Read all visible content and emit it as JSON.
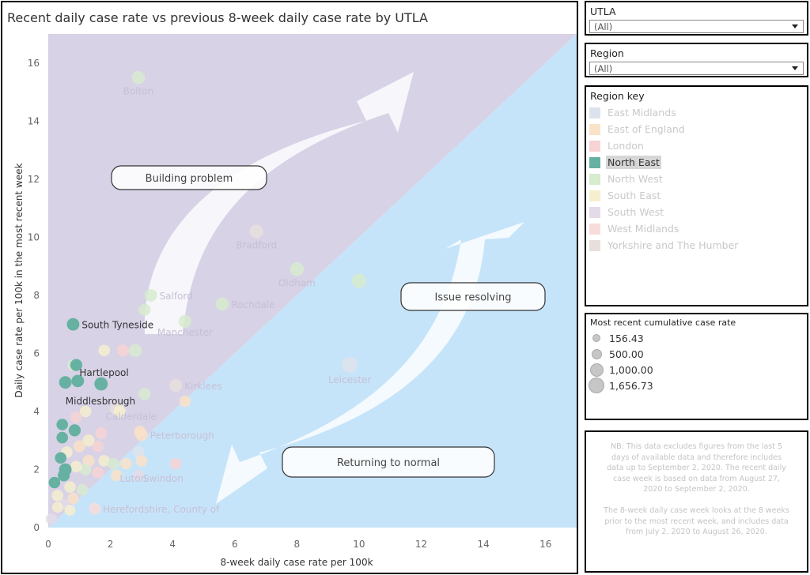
{
  "chart_title": "Recent daily case rate vs previous 8-week daily case rate by UTLA",
  "filters": [
    {
      "title": "UTLA",
      "value": "(All)"
    },
    {
      "title": "Region",
      "value": "(All)"
    }
  ],
  "region_key": {
    "title": "Region key",
    "items": [
      {
        "label": "East Midlands",
        "color": "#dde3ec",
        "active": false
      },
      {
        "label": "East of England",
        "color": "#f9e2c8",
        "active": false
      },
      {
        "label": "London",
        "color": "#f7d3d5",
        "active": false
      },
      {
        "label": "North East",
        "color": "#66b1a1",
        "active": true
      },
      {
        "label": "North West",
        "color": "#d7ebcf",
        "active": false
      },
      {
        "label": "South East",
        "color": "#f6efcf",
        "active": false
      },
      {
        "label": "South West",
        "color": "#e3dce8",
        "active": false
      },
      {
        "label": "West Midlands",
        "color": "#f8dcdb",
        "active": false
      },
      {
        "label": "Yorkshire and The Humber",
        "color": "#e7dfdc",
        "active": false
      }
    ]
  },
  "size_legend": {
    "title": "Most recent cumulative case rate",
    "items": [
      "156.43",
      "500.00",
      "1,000.00",
      "1,656.73"
    ]
  },
  "note": {
    "p1": "NB: This data excludes figures from the last 5 days of available data and therefore includes data up to September 2, 2020. The recent daily case week is based on data from August 27, 2020 to September 2, 2020.",
    "p2": "The 8-week daily case week looks at the 8 weeks prior to the most recent week, and includes data from July 2, 2020 to August 26, 2020."
  },
  "zone_labels": {
    "building": "Building problem",
    "resolving": "Issue resolving",
    "returning": "Returning to normal"
  },
  "colors": {
    "upper_zone": "#d7d2e6",
    "lower_zone": "#c6e4f9",
    "north_east": "#66b1a1"
  },
  "chart_data": {
    "type": "scatter",
    "title": "Recent daily case rate vs previous 8-week daily case rate by UTLA",
    "xlabel": "8-week daily case rate per 100k",
    "ylabel": "Daily case rate per 100k in the most recent week",
    "xlim": [
      0,
      17
    ],
    "ylim": [
      0,
      17
    ],
    "xticks": [
      0,
      2,
      4,
      6,
      8,
      10,
      12,
      14,
      16
    ],
    "yticks": [
      0,
      2,
      4,
      6,
      8,
      10,
      12,
      14,
      16
    ],
    "highlighted_region": "North East",
    "points": [
      {
        "label": "Bolton",
        "region": "North West",
        "x": 2.9,
        "y": 15.5,
        "size": 900
      },
      {
        "label": "Bradford",
        "region": "Yorkshire and The Humber",
        "x": 6.7,
        "y": 10.2,
        "size": 1000
      },
      {
        "label": "Oldham",
        "region": "North West",
        "x": 8.0,
        "y": 8.9,
        "size": 1100
      },
      {
        "label": "",
        "region": "North West",
        "x": 10.0,
        "y": 8.5,
        "size": 1200
      },
      {
        "label": "Salford",
        "region": "North West",
        "x": 3.3,
        "y": 8.0,
        "size": 700
      },
      {
        "label": "Rochdale",
        "region": "North West",
        "x": 5.6,
        "y": 7.7,
        "size": 900
      },
      {
        "label": "",
        "region": "North West",
        "x": 3.1,
        "y": 7.5,
        "size": 600
      },
      {
        "label": "Manchester",
        "region": "North West",
        "x": 4.4,
        "y": 7.1,
        "size": 800
      },
      {
        "label": "South Tyneside",
        "region": "North East",
        "x": 0.8,
        "y": 7.0,
        "size": 700
      },
      {
        "label": "",
        "region": "London",
        "x": 2.4,
        "y": 6.1,
        "size": 600
      },
      {
        "label": "",
        "region": "North West",
        "x": 2.8,
        "y": 6.1,
        "size": 800
      },
      {
        "label": "",
        "region": "South East",
        "x": 1.8,
        "y": 6.1,
        "size": 500
      },
      {
        "label": "Leicester",
        "region": "East Midlands",
        "x": 9.7,
        "y": 5.6,
        "size": 1656
      },
      {
        "label": "",
        "region": "North West",
        "x": 0.8,
        "y": 5.6,
        "size": 500
      },
      {
        "label": "Hartlepool",
        "region": "North East",
        "x": 0.9,
        "y": 5.6,
        "size": 600
      },
      {
        "label": "",
        "region": "North East",
        "x": 0.55,
        "y": 5.0,
        "size": 700
      },
      {
        "label": "",
        "region": "North East",
        "x": 0.95,
        "y": 5.05,
        "size": 700
      },
      {
        "label": "Middlesbrough",
        "region": "North East",
        "x": 1.7,
        "y": 4.95,
        "size": 900
      },
      {
        "label": "Kirklees",
        "region": "Yorkshire and The Humber",
        "x": 4.1,
        "y": 4.9,
        "size": 800
      },
      {
        "label": "",
        "region": "North West",
        "x": 3.1,
        "y": 4.6,
        "size": 600
      },
      {
        "label": "",
        "region": "East of England",
        "x": 4.4,
        "y": 4.35,
        "size": 500
      },
      {
        "label": "Calderdale",
        "region": "Yorkshire and The Humber",
        "x": 2.2,
        "y": 4.1,
        "size": 900
      },
      {
        "label": "",
        "region": "South East",
        "x": 2.3,
        "y": 4.0,
        "size": 600
      },
      {
        "label": "",
        "region": "South East",
        "x": 1.2,
        "y": 4.0,
        "size": 500
      },
      {
        "label": "",
        "region": "London",
        "x": 0.9,
        "y": 3.8,
        "size": 500
      },
      {
        "label": "",
        "region": "North East",
        "x": 0.45,
        "y": 3.55,
        "size": 500
      },
      {
        "label": "",
        "region": "North East",
        "x": 0.85,
        "y": 3.35,
        "size": 600
      },
      {
        "label": "",
        "region": "London",
        "x": 1.7,
        "y": 3.25,
        "size": 600
      },
      {
        "label": "",
        "region": "North East",
        "x": 0.45,
        "y": 3.1,
        "size": 500
      },
      {
        "label": "",
        "region": "East of England",
        "x": 2.95,
        "y": 3.3,
        "size": 600
      },
      {
        "label": "Peterborough",
        "region": "East of England",
        "x": 3.0,
        "y": 3.2,
        "size": 700
      },
      {
        "label": "",
        "region": "South East",
        "x": 1.3,
        "y": 3.0,
        "size": 600
      },
      {
        "label": "",
        "region": "East of England",
        "x": 1.0,
        "y": 2.8,
        "size": 600
      },
      {
        "label": "",
        "region": "London",
        "x": 1.6,
        "y": 2.8,
        "size": 500
      },
      {
        "label": "",
        "region": "South East",
        "x": 0.6,
        "y": 2.6,
        "size": 500
      },
      {
        "label": "",
        "region": "East Midlands",
        "x": 2.9,
        "y": 2.6,
        "size": 500
      },
      {
        "label": "",
        "region": "North East",
        "x": 0.4,
        "y": 2.4,
        "size": 500
      },
      {
        "label": "",
        "region": "East of England",
        "x": 1.3,
        "y": 2.3,
        "size": 600
      },
      {
        "label": "",
        "region": "South East",
        "x": 1.8,
        "y": 2.3,
        "size": 500
      },
      {
        "label": "",
        "region": "East of England",
        "x": 3.0,
        "y": 2.3,
        "size": 500
      },
      {
        "label": "",
        "region": "East of England",
        "x": 2.5,
        "y": 2.2,
        "size": 500
      },
      {
        "label": "",
        "region": "North West",
        "x": 2.1,
        "y": 2.2,
        "size": 500
      },
      {
        "label": "",
        "region": "London",
        "x": 4.1,
        "y": 2.2,
        "size": 500
      },
      {
        "label": "",
        "region": "North West",
        "x": 1.2,
        "y": 2.0,
        "size": 500
      },
      {
        "label": "",
        "region": "South East",
        "x": 0.9,
        "y": 2.1,
        "size": 500
      },
      {
        "label": "",
        "region": "North East",
        "x": 0.55,
        "y": 2.0,
        "size": 700
      },
      {
        "label": "",
        "region": "North East",
        "x": 0.5,
        "y": 1.8,
        "size": 600
      },
      {
        "label": "",
        "region": "London",
        "x": 1.6,
        "y": 1.9,
        "size": 500
      },
      {
        "label": "Luton",
        "region": "East of England",
        "x": 2.2,
        "y": 1.8,
        "size": 500
      },
      {
        "label": "Swindon",
        "region": "South West",
        "x": 2.9,
        "y": 1.8,
        "size": 500
      },
      {
        "label": "",
        "region": "North East",
        "x": 0.2,
        "y": 1.55,
        "size": 500
      },
      {
        "label": "",
        "region": "South East",
        "x": 0.7,
        "y": 1.4,
        "size": 500
      },
      {
        "label": "",
        "region": "North West",
        "x": 1.1,
        "y": 1.3,
        "size": 500
      },
      {
        "label": "",
        "region": "South East",
        "x": 0.3,
        "y": 1.1,
        "size": 500
      },
      {
        "label": "",
        "region": "East of England",
        "x": 0.8,
        "y": 1.0,
        "size": 500
      },
      {
        "label": "",
        "region": "South West",
        "x": 0.5,
        "y": 0.8,
        "size": 400
      },
      {
        "label": "",
        "region": "South East",
        "x": 0.3,
        "y": 0.7,
        "size": 400
      },
      {
        "label": "Herefordshire, County of",
        "region": "West Midlands",
        "x": 1.5,
        "y": 0.65,
        "size": 500
      },
      {
        "label": "",
        "region": "South West",
        "x": 0.1,
        "y": 0.3,
        "size": 400
      },
      {
        "label": "",
        "region": "South East",
        "x": 0.7,
        "y": 0.6,
        "size": 400
      }
    ]
  }
}
